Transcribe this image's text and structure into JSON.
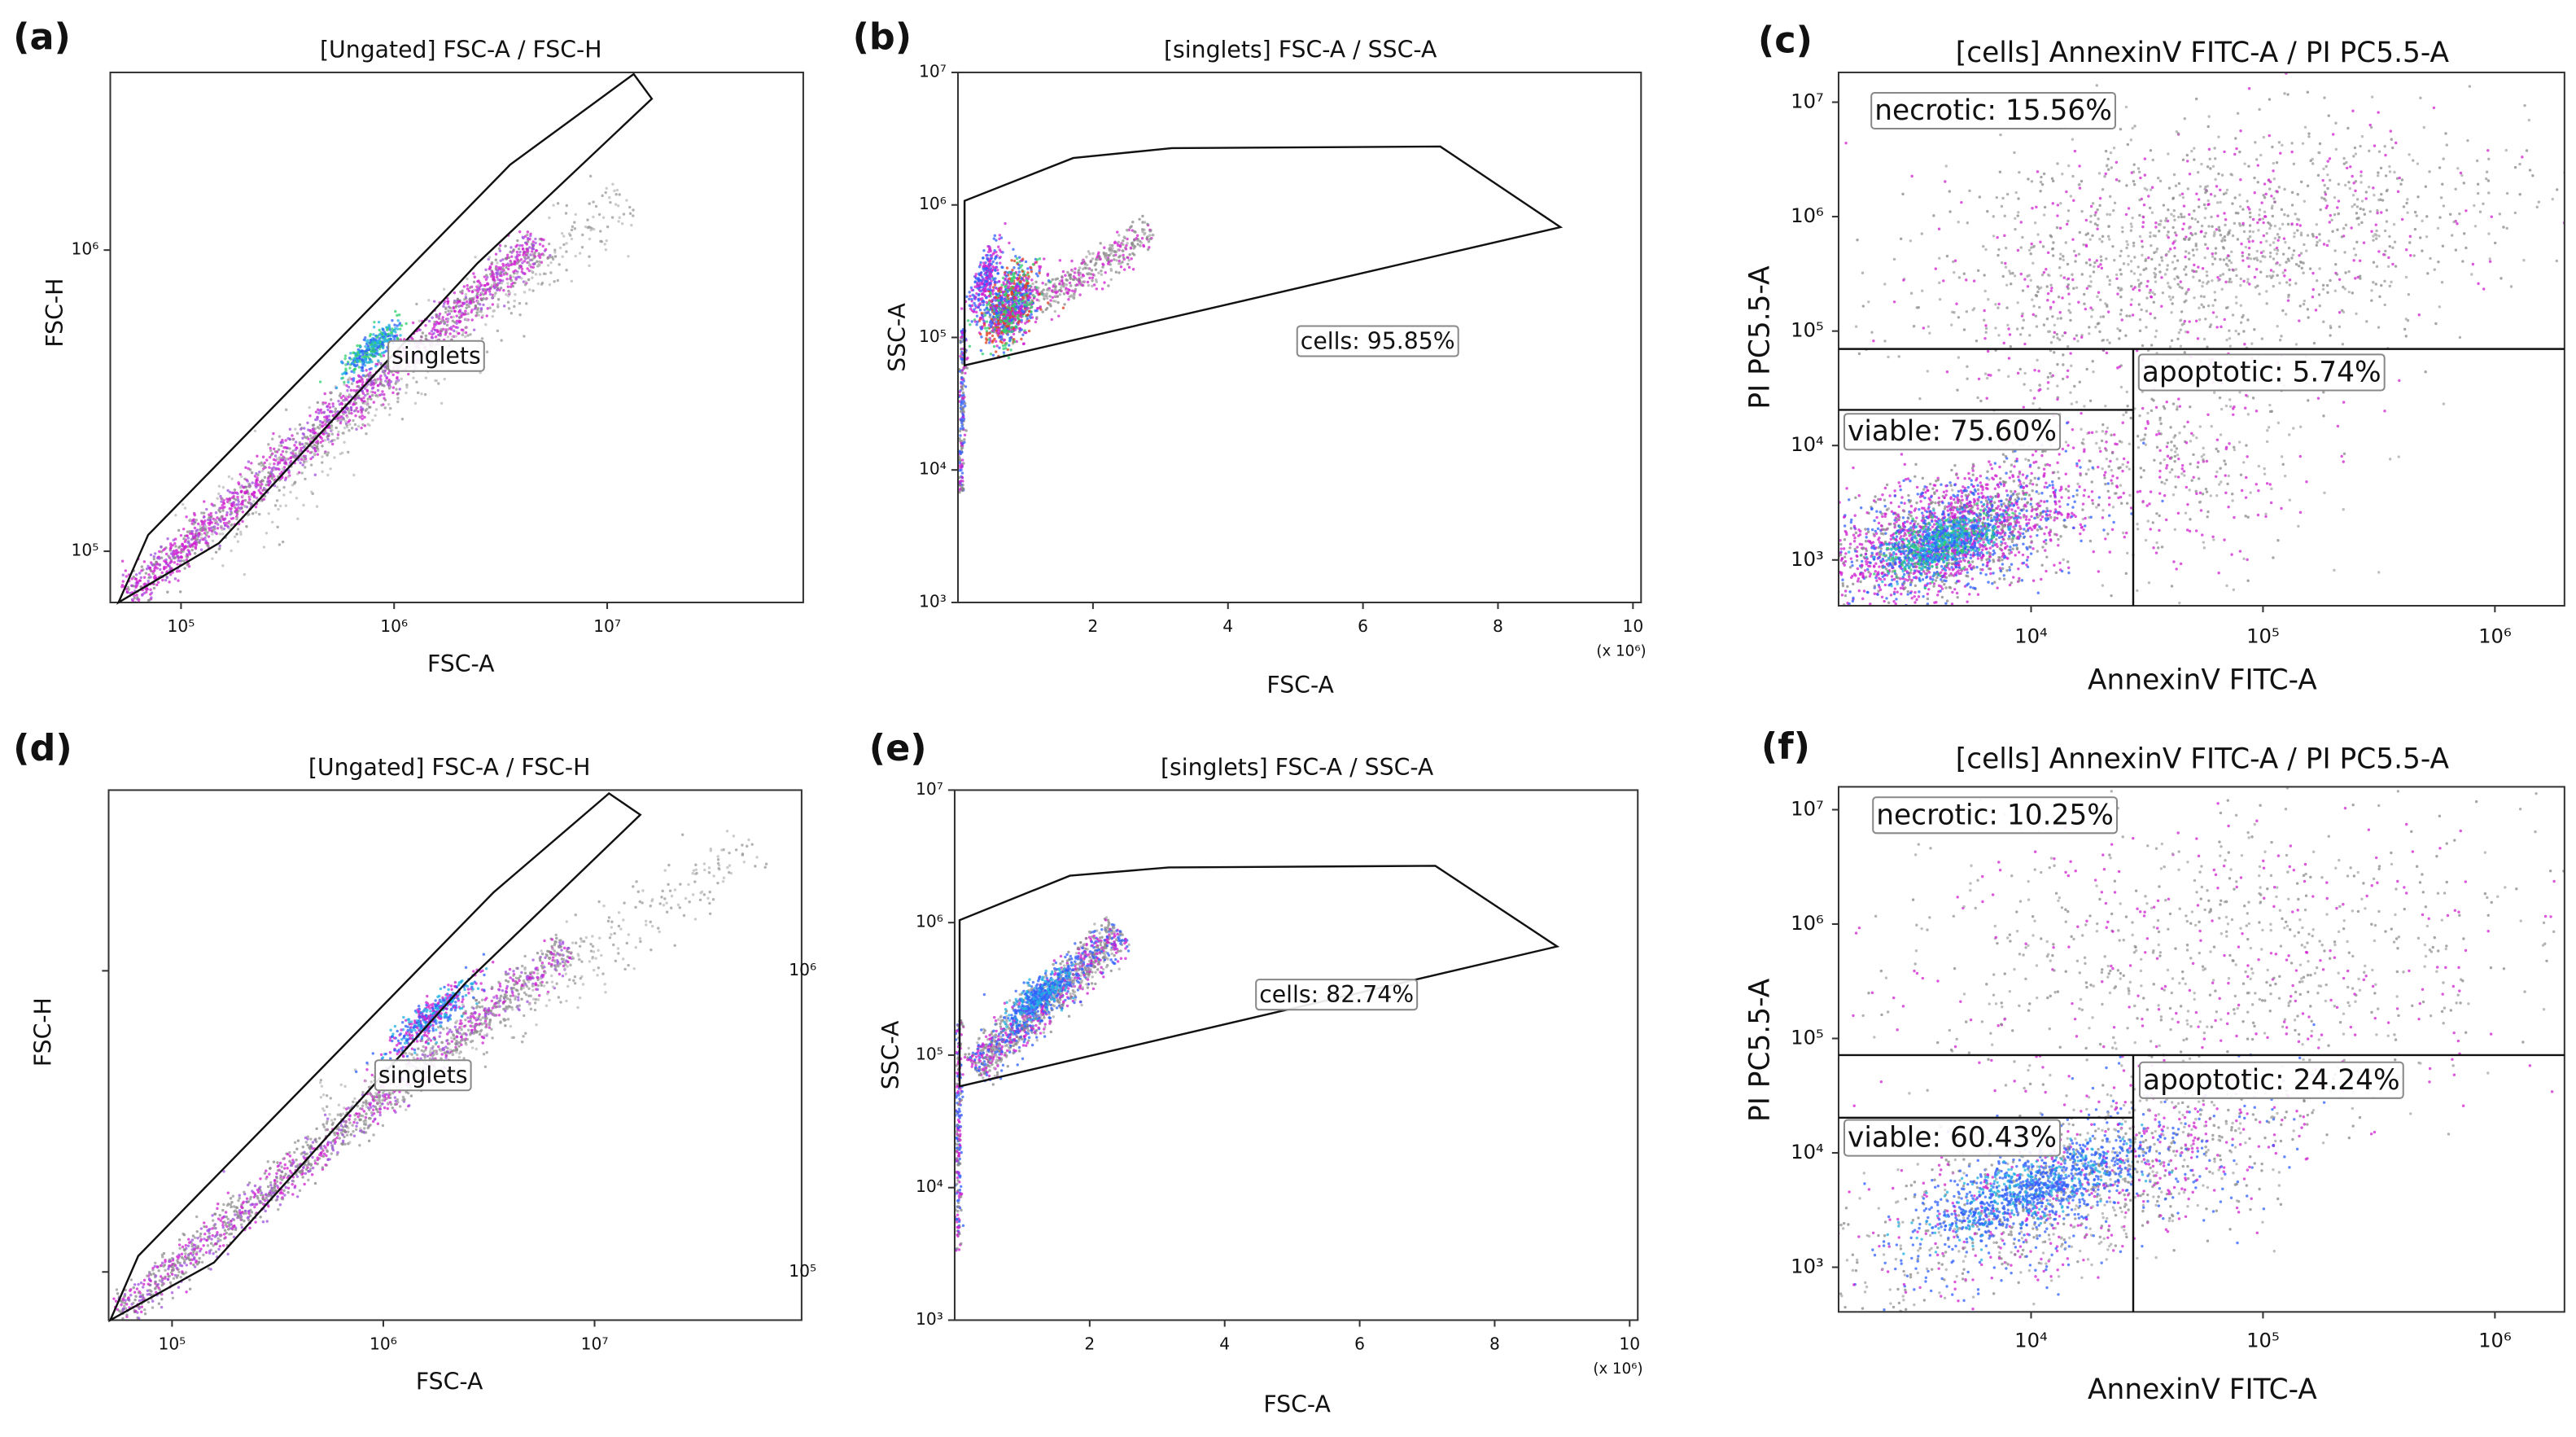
{
  "chart_data": [
    {
      "type": "scatter",
      "panel_label": "(a)",
      "title": "[Ungated] FSC-A / FSC-H",
      "x_label": "FSC-A",
      "y_label": "FSC-H",
      "xscale": "log",
      "yscale": "log",
      "xlim": [
        46560,
        83180000
      ],
      "ylim": [
        67600,
        3890000
      ],
      "xticks": [
        {
          "value": 100000,
          "label": "10⁵"
        },
        {
          "value": 1000000,
          "label": "10⁶"
        },
        {
          "value": 10000000,
          "label": "10⁷"
        }
      ],
      "yticks": [
        {
          "value": 100000,
          "label": "10⁵"
        },
        {
          "value": 1000000,
          "label": "10⁶"
        }
      ],
      "gates": [
        "singlets"
      ]
    },
    {
      "type": "scatter",
      "panel_label": "(b)",
      "title": "[singlets] FSC-A / SSC-A",
      "x_label": "FSC-A",
      "y_label": "SSC-A",
      "xscale": "linear",
      "yscale": "log",
      "x_multiplier": "(x 10⁶)",
      "xlim": [
        0,
        10.12
      ],
      "ylim": [
        1000,
        10000000
      ],
      "xticks": [
        2,
        4,
        6,
        8,
        10
      ],
      "yticks": [
        {
          "value": 1000,
          "label": "10³"
        },
        {
          "value": 10000,
          "label": "10⁴"
        },
        {
          "value": 100000,
          "label": "10⁵"
        },
        {
          "value": 1000000,
          "label": "10⁶"
        },
        {
          "value": 10000000,
          "label": "10⁷"
        }
      ],
      "gates": [
        "cells: 95.85%"
      ]
    },
    {
      "type": "scatter",
      "panel_label": "(c)",
      "title": "[cells] AnnexinV FITC-A / PI PC5.5-A",
      "x_label": "AnnexinV FITC-A",
      "y_label": "PI PC5.5-A",
      "xscale": "log",
      "yscale": "log",
      "xlim": [
        1479,
        1995000
      ],
      "ylim": [
        398,
        18200000
      ],
      "xticks": [
        {
          "value": 10000,
          "label": "10⁴"
        },
        {
          "value": 100000,
          "label": "10⁵"
        },
        {
          "value": 1000000,
          "label": "10⁶"
        }
      ],
      "yticks": [
        {
          "value": 1000,
          "label": "10³"
        },
        {
          "value": 10000,
          "label": "10⁴"
        },
        {
          "value": 100000,
          "label": "10⁵"
        },
        {
          "value": 1000000,
          "label": "10⁶"
        },
        {
          "value": 10000000,
          "label": "10⁷"
        }
      ],
      "gates": [
        "necrotic: 15.56%",
        "apoptotic: 5.74%",
        "viable: 75.60%"
      ]
    },
    {
      "type": "scatter",
      "panel_label": "(d)",
      "title": "[Ungated] FSC-A / FSC-H",
      "x_label": "FSC-A",
      "y_label": "FSC-H",
      "xscale": "log",
      "yscale": "log",
      "xlim": [
        50100,
        95500000
      ],
      "ylim": [
        69180,
        3981000
      ],
      "xticks": [
        {
          "value": 100000,
          "label": "10⁵"
        },
        {
          "value": 1000000,
          "label": "10⁶"
        },
        {
          "value": 10000000,
          "label": "10⁷"
        }
      ],
      "yticks": [
        {
          "value": 100000,
          "label": "10⁵"
        },
        {
          "value": 1000000,
          "label": "10⁶"
        }
      ],
      "gates": [
        "singlets"
      ]
    },
    {
      "type": "scatter",
      "panel_label": "(e)",
      "title": "[singlets] FSC-A / SSC-A",
      "x_label": "FSC-A",
      "y_label": "SSC-A",
      "xscale": "linear",
      "yscale": "log",
      "x_multiplier": "(x 10⁶)",
      "xlim": [
        0,
        10.12
      ],
      "ylim": [
        1000,
        10000000
      ],
      "xticks": [
        2,
        4,
        6,
        8,
        10
      ],
      "yticks": [
        {
          "value": 1000,
          "label": "10³"
        },
        {
          "value": 10000,
          "label": "10⁴"
        },
        {
          "value": 100000,
          "label": "10⁵"
        },
        {
          "value": 1000000,
          "label": "10⁶"
        },
        {
          "value": 10000000,
          "label": "10⁷"
        }
      ],
      "gates": [
        "cells: 82.74%"
      ]
    },
    {
      "type": "scatter",
      "panel_label": "(f)",
      "title": "[cells] AnnexinV FITC-A / PI PC5.5-A",
      "x_label": "AnnexinV FITC-A",
      "y_label": "PI PC5.5-A",
      "xscale": "log",
      "yscale": "log",
      "xlim": [
        1479,
        1995000
      ],
      "ylim": [
        407,
        15850000
      ],
      "xticks": [
        {
          "value": 10000,
          "label": "10⁴"
        },
        {
          "value": 100000,
          "label": "10⁵"
        },
        {
          "value": 1000000,
          "label": "10⁶"
        }
      ],
      "yticks": [
        {
          "value": 1000,
          "label": "10³"
        },
        {
          "value": 10000,
          "label": "10⁴"
        },
        {
          "value": 100000,
          "label": "10⁵"
        },
        {
          "value": 1000000,
          "label": "10⁶"
        },
        {
          "value": 10000000,
          "label": "10⁷"
        }
      ],
      "gates": [
        "necrotic: 10.25%",
        "apoptotic: 24.24%",
        "viable: 60.43%"
      ]
    }
  ]
}
